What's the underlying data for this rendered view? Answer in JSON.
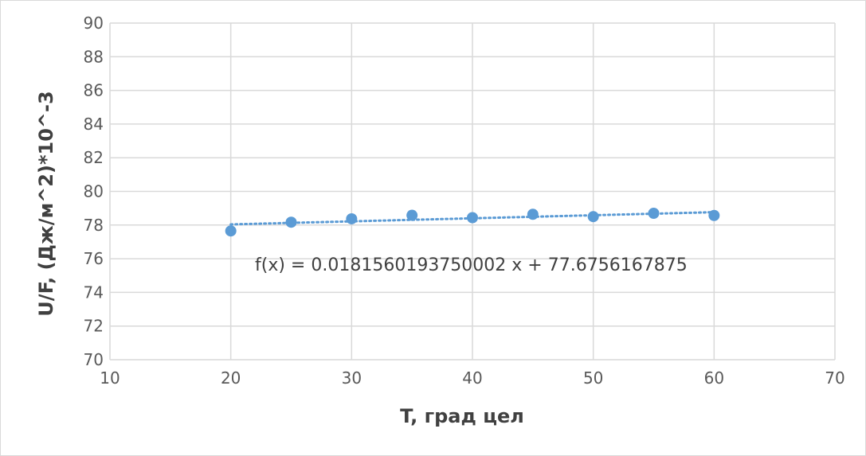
{
  "chart_data": {
    "type": "scatter",
    "x": [
      20,
      25,
      30,
      35,
      40,
      45,
      50,
      55,
      60
    ],
    "y": [
      77.65,
      78.17,
      78.37,
      78.58,
      78.44,
      78.64,
      78.5,
      78.7,
      78.57
    ],
    "xlabel": "T, град цел",
    "ylabel": "U/F, (Дж/м^2)*10^-3",
    "xlim": [
      10,
      70
    ],
    "ylim": [
      70,
      90
    ],
    "x_ticks": [
      10,
      20,
      30,
      40,
      50,
      60,
      70
    ],
    "y_ticks": [
      70,
      72,
      74,
      76,
      78,
      80,
      82,
      84,
      86,
      88,
      90
    ],
    "grid": true,
    "trendline": {
      "type": "linear",
      "slope": 0.0181560193750002,
      "intercept": 77.6756167875,
      "x_range": [
        20,
        60
      ],
      "equation": "f(x) = 0.0181560193750002 x + 77.6756167875"
    },
    "colors": {
      "marker": "#5b9bd5",
      "trendline": "#5b9bd5",
      "grid": "#d9d9d9"
    }
  }
}
